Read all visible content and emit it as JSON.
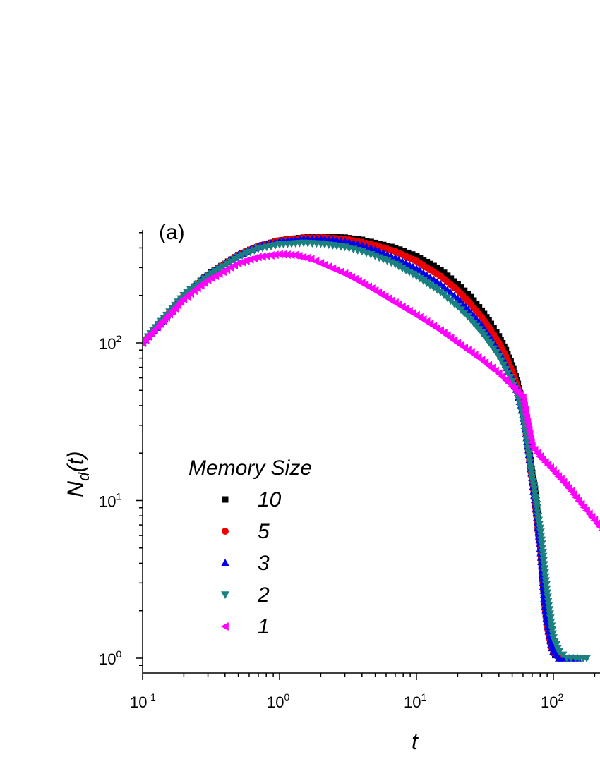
{
  "chart_data": {
    "type": "scatter",
    "panel_label": "(a)",
    "xlabel": "t",
    "ylabel_main": "N",
    "ylabel_sub": "d",
    "ylabel_tail": "(t)",
    "xscale": "log",
    "yscale": "log",
    "xlim": [
      0.1,
      230
    ],
    "ylim": [
      0.82,
      500
    ],
    "x_ticks": [
      {
        "value": 0.1,
        "base": "10",
        "exp": "-1"
      },
      {
        "value": 1,
        "base": "10",
        "exp": "0"
      },
      {
        "value": 10,
        "base": "10",
        "exp": "1"
      },
      {
        "value": 100,
        "base": "10",
        "exp": "2"
      }
    ],
    "y_ticks": [
      {
        "value": 1,
        "base": "10",
        "exp": "0"
      },
      {
        "value": 10,
        "base": "10",
        "exp": "1"
      },
      {
        "value": 100,
        "base": "10",
        "exp": "2"
      }
    ],
    "legend": {
      "title": "Memory Size",
      "position": "center-left"
    },
    "series": [
      {
        "name": "10",
        "color": "#000000",
        "marker": "square",
        "points": [
          [
            0.1,
            100
          ],
          [
            0.15,
            150
          ],
          [
            0.2,
            200
          ],
          [
            0.3,
            270
          ],
          [
            0.5,
            360
          ],
          [
            0.7,
            410
          ],
          [
            1,
            445
          ],
          [
            1.5,
            465
          ],
          [
            2,
            470
          ],
          [
            3,
            465
          ],
          [
            4,
            450
          ],
          [
            5,
            430
          ],
          [
            7,
            400
          ],
          [
            10,
            355
          ],
          [
            15,
            290
          ],
          [
            20,
            235
          ],
          [
            25,
            195
          ],
          [
            30,
            160
          ],
          [
            35,
            132
          ],
          [
            40,
            110
          ],
          [
            45,
            90
          ],
          [
            50,
            72
          ],
          [
            55,
            55
          ],
          [
            58,
            45
          ],
          [
            60,
            38
          ],
          [
            62,
            32
          ],
          [
            64,
            27
          ],
          [
            66,
            22
          ],
          [
            68,
            18
          ],
          [
            70,
            15
          ],
          [
            72,
            13
          ],
          [
            74,
            11
          ],
          [
            76,
            9
          ],
          [
            78,
            7
          ],
          [
            80,
            5.5
          ],
          [
            82,
            3.9
          ],
          [
            85,
            2.6
          ],
          [
            88,
            1.9
          ],
          [
            92,
            1.5
          ],
          [
            97,
            1.2
          ],
          [
            103,
            1.05
          ],
          [
            110,
            1.0
          ],
          [
            120,
            1.0
          ],
          [
            130,
            1.0
          ]
        ]
      },
      {
        "name": "5",
        "color": "#ee0000",
        "marker": "circle",
        "points": [
          [
            0.1,
            100
          ],
          [
            0.15,
            150
          ],
          [
            0.2,
            200
          ],
          [
            0.3,
            270
          ],
          [
            0.5,
            360
          ],
          [
            0.7,
            410
          ],
          [
            1,
            445
          ],
          [
            1.5,
            462
          ],
          [
            2,
            465
          ],
          [
            3,
            455
          ],
          [
            4,
            435
          ],
          [
            5,
            415
          ],
          [
            7,
            380
          ],
          [
            10,
            330
          ],
          [
            15,
            265
          ],
          [
            20,
            215
          ],
          [
            25,
            175
          ],
          [
            30,
            145
          ],
          [
            35,
            120
          ],
          [
            40,
            100
          ],
          [
            45,
            82
          ],
          [
            50,
            66
          ],
          [
            55,
            52
          ],
          [
            58,
            43
          ],
          [
            60,
            36
          ],
          [
            62,
            30
          ],
          [
            64,
            25
          ],
          [
            66,
            20
          ],
          [
            68,
            16
          ],
          [
            70,
            13.5
          ],
          [
            72,
            11
          ],
          [
            74,
            9
          ],
          [
            76,
            7.5
          ],
          [
            78,
            6
          ],
          [
            80,
            5.2
          ],
          [
            83,
            3.5
          ],
          [
            86,
            2.3
          ],
          [
            90,
            1.6
          ],
          [
            95,
            1.25
          ],
          [
            100,
            1.08
          ],
          [
            110,
            1.0
          ],
          [
            125,
            1.0
          ]
        ]
      },
      {
        "name": "3",
        "color": "#0000ee",
        "marker": "triangle-up",
        "points": [
          [
            0.1,
            100
          ],
          [
            0.15,
            150
          ],
          [
            0.2,
            200
          ],
          [
            0.3,
            270
          ],
          [
            0.5,
            360
          ],
          [
            0.7,
            410
          ],
          [
            1,
            440
          ],
          [
            1.5,
            455
          ],
          [
            2,
            455
          ],
          [
            3,
            440
          ],
          [
            4,
            415
          ],
          [
            5,
            390
          ],
          [
            7,
            345
          ],
          [
            10,
            295
          ],
          [
            15,
            235
          ],
          [
            20,
            190
          ],
          [
            25,
            155
          ],
          [
            30,
            128
          ],
          [
            35,
            106
          ],
          [
            40,
            88
          ],
          [
            45,
            73
          ],
          [
            50,
            60
          ],
          [
            55,
            48
          ],
          [
            58,
            40
          ],
          [
            60,
            35
          ],
          [
            62,
            30
          ],
          [
            64,
            25
          ],
          [
            66,
            21
          ],
          [
            68,
            17
          ],
          [
            70,
            14
          ],
          [
            72,
            11.5
          ],
          [
            74,
            9.5
          ],
          [
            76,
            7.8
          ],
          [
            78,
            6.3
          ],
          [
            80,
            5.3
          ],
          [
            83,
            3.6
          ],
          [
            86,
            2.4
          ],
          [
            90,
            1.7
          ],
          [
            95,
            1.3
          ],
          [
            100,
            1.1
          ],
          [
            110,
            1.0
          ],
          [
            130,
            1.0
          ],
          [
            150,
            1.0
          ]
        ]
      },
      {
        "name": "2",
        "color": "#1a8080",
        "marker": "triangle-down",
        "points": [
          [
            0.1,
            100
          ],
          [
            0.15,
            150
          ],
          [
            0.2,
            200
          ],
          [
            0.3,
            265
          ],
          [
            0.5,
            350
          ],
          [
            0.7,
            395
          ],
          [
            1,
            420
          ],
          [
            1.5,
            430
          ],
          [
            2,
            425
          ],
          [
            3,
            405
          ],
          [
            4,
            380
          ],
          [
            5,
            355
          ],
          [
            7,
            315
          ],
          [
            10,
            265
          ],
          [
            15,
            210
          ],
          [
            20,
            170
          ],
          [
            25,
            140
          ],
          [
            30,
            116
          ],
          [
            35,
            97
          ],
          [
            40,
            82
          ],
          [
            45,
            68
          ],
          [
            50,
            57
          ],
          [
            55,
            46
          ],
          [
            58,
            39
          ],
          [
            60,
            34
          ],
          [
            62,
            29
          ],
          [
            64,
            24.5
          ],
          [
            66,
            20
          ],
          [
            68,
            16.5
          ],
          [
            70,
            14
          ],
          [
            72,
            12.5
          ],
          [
            74,
            10.5
          ],
          [
            76,
            9
          ],
          [
            78,
            7.5
          ],
          [
            80,
            6.7
          ],
          [
            83,
            5
          ],
          [
            86,
            3.7
          ],
          [
            90,
            2.6
          ],
          [
            95,
            1.8
          ],
          [
            100,
            1.35
          ],
          [
            110,
            1.1
          ],
          [
            125,
            1.0
          ],
          [
            145,
            1.0
          ],
          [
            165,
            1.0
          ],
          [
            175,
            1.0
          ]
        ]
      },
      {
        "name": "1",
        "color": "#ff00ff",
        "marker": "triangle-left",
        "points": [
          [
            0.1,
            100
          ],
          [
            0.15,
            145
          ],
          [
            0.2,
            190
          ],
          [
            0.3,
            250
          ],
          [
            0.5,
            320
          ],
          [
            0.7,
            350
          ],
          [
            1,
            365
          ],
          [
            1.3,
            360
          ],
          [
            1.7,
            340
          ],
          [
            2,
            320
          ],
          [
            3,
            275
          ],
          [
            4,
            240
          ],
          [
            5,
            215
          ],
          [
            7,
            180
          ],
          [
            10,
            150
          ],
          [
            15,
            120
          ],
          [
            20,
            100
          ],
          [
            30,
            78
          ],
          [
            40,
            64
          ],
          [
            50,
            53
          ],
          [
            60,
            45
          ],
          [
            70,
            22
          ],
          [
            80,
            19
          ],
          [
            100,
            15.5
          ],
          [
            130,
            12
          ],
          [
            160,
            9.5
          ],
          [
            200,
            7.5
          ],
          [
            230,
            6.5
          ]
        ]
      }
    ]
  }
}
